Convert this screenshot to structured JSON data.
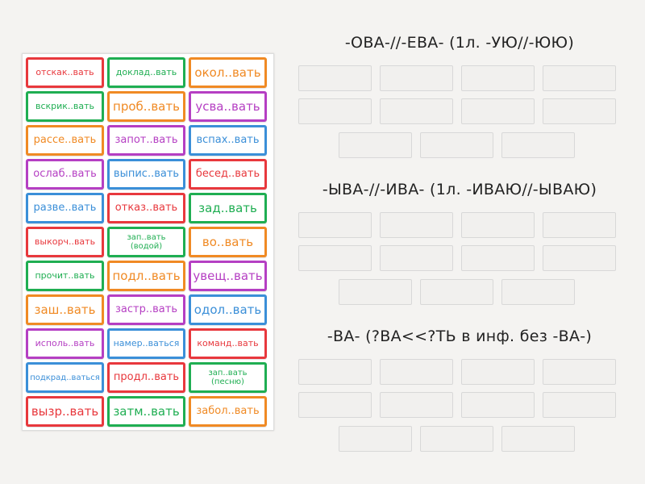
{
  "colors": {
    "red": "#e8383d",
    "green": "#1fae52",
    "orange": "#f08a24",
    "purple": "#b53fc3",
    "blue": "#3b8fd8"
  },
  "categories": [
    {
      "title": "-ОВА-//-ЕВА- (1л. -УЮ//-ЮЮ)"
    },
    {
      "title": "-ЫВА-//-ИВА- (1л. -ИВАЮ//-ЫВАЮ)"
    },
    {
      "title": "-ВА- (?ВА<<?ТЬ в инф. без -ВА-)"
    }
  ],
  "words": [
    {
      "text": "отскак..вать",
      "color": "red"
    },
    {
      "text": "доклад..вать",
      "color": "green"
    },
    {
      "text": "окол..вать",
      "color": "orange"
    },
    {
      "text": "вскрик..вать",
      "color": "green"
    },
    {
      "text": "проб..вать",
      "color": "orange"
    },
    {
      "text": "усва..вать",
      "color": "purple"
    },
    {
      "text": "рассе..вать",
      "color": "orange"
    },
    {
      "text": "запот..вать",
      "color": "purple"
    },
    {
      "text": "вспах..вать",
      "color": "blue"
    },
    {
      "text": "ослаб..вать",
      "color": "purple"
    },
    {
      "text": "выпис..вать",
      "color": "blue"
    },
    {
      "text": "бесед..вать",
      "color": "red"
    },
    {
      "text": "разве..вать",
      "color": "blue"
    },
    {
      "text": "отказ..вать",
      "color": "red"
    },
    {
      "text": "зад..вать",
      "color": "green"
    },
    {
      "text": "выкорч..вать",
      "color": "red"
    },
    {
      "text": "зап..вать",
      "text2": "(водой)",
      "color": "green"
    },
    {
      "text": "во..вать",
      "color": "orange"
    },
    {
      "text": "прочит..вать",
      "color": "green"
    },
    {
      "text": "подл..вать",
      "color": "orange"
    },
    {
      "text": "увещ..вать",
      "color": "purple"
    },
    {
      "text": "заш..вать",
      "color": "orange"
    },
    {
      "text": "застр..вать",
      "color": "purple"
    },
    {
      "text": "одол..вать",
      "color": "blue"
    },
    {
      "text": "исполь..вать",
      "color": "purple"
    },
    {
      "text": "намер..ваться",
      "color": "blue"
    },
    {
      "text": "команд..вать",
      "color": "red"
    },
    {
      "text": "подкрад..ваться",
      "color": "blue"
    },
    {
      "text": "продл..вать",
      "color": "red"
    },
    {
      "text": "зап..вать",
      "text2": "(песню)",
      "color": "green"
    },
    {
      "text": "вызр..вать",
      "color": "red"
    },
    {
      "text": "затм..вать",
      "color": "green"
    },
    {
      "text": "забол..вать",
      "color": "orange"
    }
  ]
}
